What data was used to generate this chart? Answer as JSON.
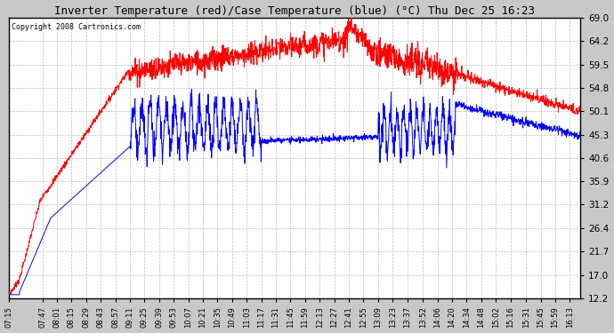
{
  "title": "Inverter Temperature (red)/Case Temperature (blue) (°C) Thu Dec 25 16:23",
  "copyright_text": "Copyright 2008 Cartronics.com",
  "yticks": [
    12.2,
    17.0,
    21.7,
    26.4,
    31.2,
    35.9,
    40.6,
    45.3,
    50.1,
    54.8,
    59.5,
    64.2,
    69.0
  ],
  "ymin": 12.2,
  "ymax": 69.0,
  "bg_color": "#c8c8c8",
  "plot_bg_color": "#ffffff",
  "grid_color": "#bbbbbb",
  "red_color": "#ff0000",
  "blue_color": "#0000ff",
  "xtick_labels": [
    "07:15",
    "07:47",
    "08:01",
    "08:15",
    "08:29",
    "08:43",
    "08:57",
    "09:11",
    "09:25",
    "09:39",
    "09:53",
    "10:07",
    "10:21",
    "10:35",
    "10:49",
    "11:03",
    "11:17",
    "11:31",
    "11:45",
    "11:59",
    "12:13",
    "12:27",
    "12:41",
    "12:55",
    "13:09",
    "13:23",
    "13:37",
    "13:52",
    "14:06",
    "14:20",
    "14:34",
    "14:48",
    "15:02",
    "15:16",
    "15:31",
    "15:45",
    "15:59",
    "16:13"
  ]
}
